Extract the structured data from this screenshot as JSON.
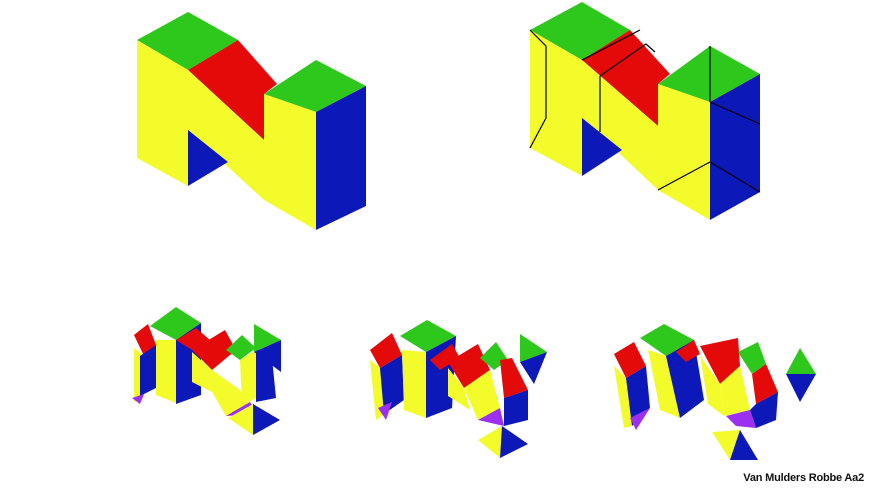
{
  "credit": "Van Mulders Robbe Aa2",
  "colors": {
    "yellow": "#f4fb2a",
    "green": "#2ec81c",
    "red": "#e40a0a",
    "blue": "#0d18b8",
    "purple": "#9b30f0",
    "line": "#000000"
  },
  "shapes": {
    "n_logo_full": "Nintendo 64 style 3D N logo",
    "n_logo_cut": "N logo with cut lines",
    "exploded_pieces": "three exploded stages of N logo pieces"
  }
}
